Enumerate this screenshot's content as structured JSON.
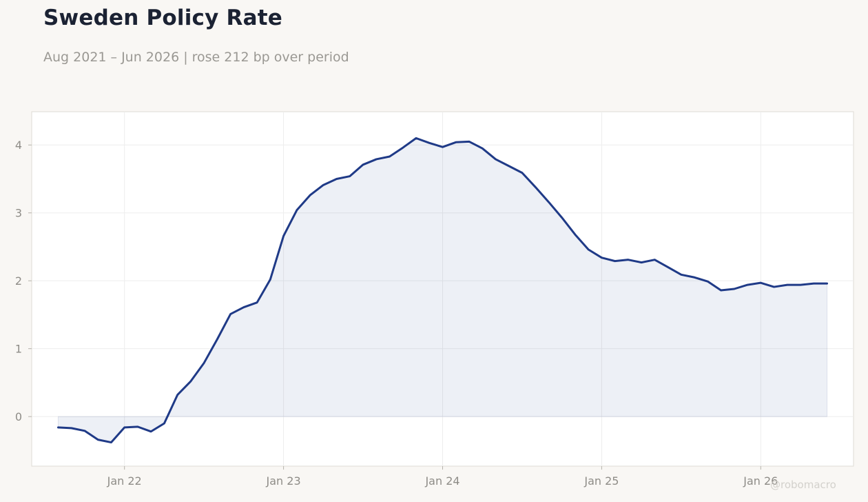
{
  "header": {
    "title": "Sweden Policy Rate",
    "subtitle": "Aug 2021 – Jun 2026 | rose 212 bp over period"
  },
  "watermark": "@robomacro",
  "colors": {
    "line": "#1f3a87",
    "fill": "#1f3a87",
    "background": "#f9f7f4",
    "plot_background": "#ffffff",
    "grid": "#ededed"
  },
  "chart_data": {
    "type": "area",
    "title": "Sweden Policy Rate",
    "subtitle": "Aug 2021 – Jun 2026 | rose 212 bp over period",
    "xlabel": "",
    "ylabel": "",
    "grid": true,
    "legend": "none",
    "xlim": [
      "2021-06",
      "2026-08"
    ],
    "ylim": [
      -0.73,
      4.49
    ],
    "x_ticks": [
      {
        "date": "2022-01",
        "label": "Jan 22"
      },
      {
        "date": "2023-01",
        "label": "Jan 23"
      },
      {
        "date": "2024-01",
        "label": "Jan 24"
      },
      {
        "date": "2025-01",
        "label": "Jan 25"
      },
      {
        "date": "2026-01",
        "label": "Jan 26"
      }
    ],
    "y_ticks": [
      0,
      1,
      2,
      3,
      4
    ],
    "series": [
      {
        "x": [
          "2021-08",
          "2021-09",
          "2021-10",
          "2021-11",
          "2021-12",
          "2022-01",
          "2022-02",
          "2022-03",
          "2022-04",
          "2022-05",
          "2022-06",
          "2022-07",
          "2022-08",
          "2022-09",
          "2022-10",
          "2022-11",
          "2022-12",
          "2023-01",
          "2023-02",
          "2023-03",
          "2023-04",
          "2023-05",
          "2023-06",
          "2023-07",
          "2023-08",
          "2023-09",
          "2023-10",
          "2023-11",
          "2023-12",
          "2024-01",
          "2024-02",
          "2024-03",
          "2024-04",
          "2024-05",
          "2024-06",
          "2024-07",
          "2024-08",
          "2024-09",
          "2024-10",
          "2024-11",
          "2024-12",
          "2025-01",
          "2025-02",
          "2025-03",
          "2025-04",
          "2025-05",
          "2025-06",
          "2025-07",
          "2025-08",
          "2025-09",
          "2025-10",
          "2025-11",
          "2025-12",
          "2026-01",
          "2026-02",
          "2026-03",
          "2026-04",
          "2026-05",
          "2026-06"
        ],
        "values": [
          -0.16,
          -0.17,
          -0.21,
          -0.34,
          -0.38,
          -0.16,
          -0.15,
          -0.22,
          -0.1,
          0.32,
          0.52,
          0.79,
          1.14,
          1.51,
          1.61,
          1.68,
          2.02,
          2.66,
          3.04,
          3.26,
          3.41,
          3.5,
          3.54,
          3.71,
          3.79,
          3.83,
          3.96,
          4.1,
          4.03,
          3.97,
          4.04,
          4.05,
          3.95,
          3.79,
          3.69,
          3.59,
          3.38,
          3.16,
          2.93,
          2.68,
          2.46,
          2.34,
          2.29,
          2.31,
          2.27,
          2.31,
          2.2,
          2.09,
          2.05,
          1.99,
          1.86,
          1.88,
          1.94,
          1.97,
          1.91,
          1.94,
          1.94,
          1.96,
          1.96
        ]
      }
    ]
  }
}
